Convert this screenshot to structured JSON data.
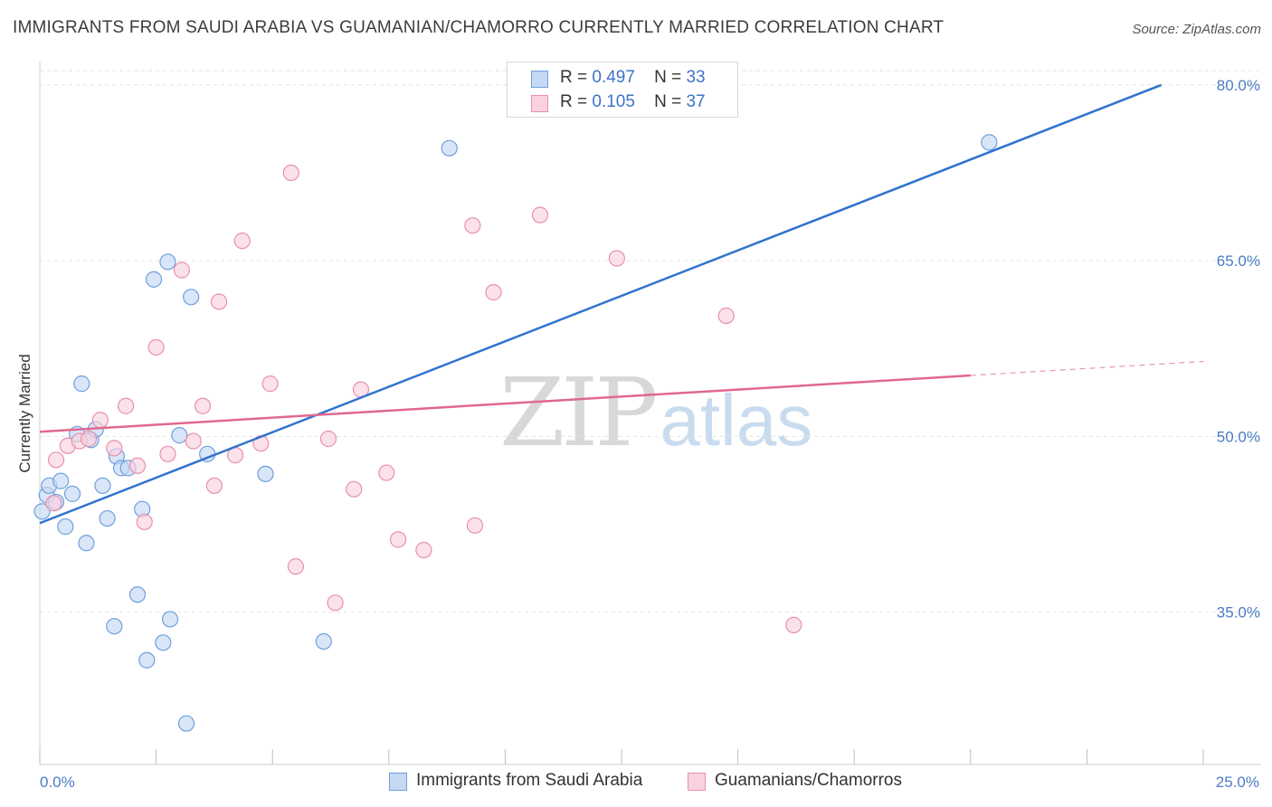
{
  "title": "IMMIGRANTS FROM SAUDI ARABIA VS GUAMANIAN/CHAMORRO CURRENTLY MARRIED CORRELATION CHART",
  "source": "Source: ZipAtlas.com",
  "watermark": {
    "zip": "ZIP",
    "atlas": "atlas"
  },
  "legend": {
    "r_label": "R =",
    "n_label": "N =",
    "rows": [
      {
        "r": "0.497",
        "n": "33"
      },
      {
        "r": "0.105",
        "n": "37"
      }
    ]
  },
  "chart_data": {
    "type": "scatter",
    "title": "IMMIGRANTS FROM SAUDI ARABIA VS GUAMANIAN/CHAMORRO CURRENTLY MARRIED CORRELATION CHART",
    "xlabel": "",
    "ylabel": "Currently Married",
    "xlim": [
      0,
      25
    ],
    "ylim": [
      22,
      82
    ],
    "x_tick_labels": [
      "0.0%",
      "25.0%"
    ],
    "y_ticks": [
      {
        "value": 35,
        "label": "35.0%"
      },
      {
        "value": 50,
        "label": "50.0%"
      },
      {
        "value": 65,
        "label": "65.0%"
      },
      {
        "value": 80,
        "label": "80.0%"
      }
    ],
    "grid": true,
    "series": [
      {
        "name": "Immigrants from Saudi Arabia",
        "color": "#6e9fde",
        "fill": "#c5d9f4",
        "R": 0.497,
        "N": 33,
        "trend": {
          "x0": 0,
          "y0": 42.6,
          "x1": 24.1,
          "y1": 80.0,
          "dashed_to": null
        },
        "points": [
          [
            0.05,
            43.6
          ],
          [
            0.15,
            45.0
          ],
          [
            0.2,
            45.8
          ],
          [
            0.35,
            44.4
          ],
          [
            0.45,
            46.2
          ],
          [
            0.55,
            42.3
          ],
          [
            0.7,
            45.1
          ],
          [
            0.8,
            50.2
          ],
          [
            0.9,
            54.5
          ],
          [
            1.0,
            40.9
          ],
          [
            1.1,
            49.7
          ],
          [
            1.2,
            50.6
          ],
          [
            1.35,
            45.8
          ],
          [
            1.45,
            43.0
          ],
          [
            1.6,
            33.8
          ],
          [
            1.65,
            48.3
          ],
          [
            1.75,
            47.3
          ],
          [
            1.9,
            47.3
          ],
          [
            2.1,
            36.5
          ],
          [
            2.2,
            43.8
          ],
          [
            2.3,
            30.9
          ],
          [
            2.45,
            63.4
          ],
          [
            2.65,
            32.4
          ],
          [
            2.75,
            64.9
          ],
          [
            2.8,
            34.4
          ],
          [
            3.0,
            50.1
          ],
          [
            3.15,
            25.5
          ],
          [
            3.25,
            61.9
          ],
          [
            3.6,
            48.5
          ],
          [
            4.85,
            46.8
          ],
          [
            6.1,
            32.5
          ],
          [
            8.8,
            74.6
          ],
          [
            20.4,
            75.1
          ]
        ]
      },
      {
        "name": "Guamanians/Chamorros",
        "color": "#e890ab",
        "fill": "#f9d2de",
        "R": 0.105,
        "N": 37,
        "trend": {
          "x0": 0,
          "y0": 50.4,
          "x1": 20.0,
          "y1": 55.2,
          "dashed_to": {
            "x": 25.0,
            "y": 56.4
          }
        },
        "points": [
          [
            0.3,
            44.3
          ],
          [
            0.35,
            48.0
          ],
          [
            0.6,
            49.2
          ],
          [
            0.85,
            49.6
          ],
          [
            1.05,
            49.8
          ],
          [
            1.3,
            51.4
          ],
          [
            1.6,
            49.0
          ],
          [
            1.85,
            52.6
          ],
          [
            2.1,
            47.5
          ],
          [
            2.25,
            42.7
          ],
          [
            2.5,
            57.6
          ],
          [
            2.75,
            48.5
          ],
          [
            3.05,
            64.2
          ],
          [
            3.3,
            49.6
          ],
          [
            3.5,
            52.6
          ],
          [
            3.75,
            45.8
          ],
          [
            3.85,
            61.5
          ],
          [
            4.2,
            48.4
          ],
          [
            4.35,
            66.7
          ],
          [
            4.75,
            49.4
          ],
          [
            4.95,
            54.5
          ],
          [
            5.4,
            72.5
          ],
          [
            5.5,
            38.9
          ],
          [
            6.2,
            49.8
          ],
          [
            6.35,
            35.8
          ],
          [
            6.75,
            45.5
          ],
          [
            6.9,
            54.0
          ],
          [
            7.45,
            46.9
          ],
          [
            7.7,
            41.2
          ],
          [
            8.25,
            40.3
          ],
          [
            9.3,
            68.0
          ],
          [
            9.35,
            42.4
          ],
          [
            9.75,
            62.3
          ],
          [
            10.75,
            68.9
          ],
          [
            12.4,
            65.2
          ],
          [
            14.75,
            60.3
          ],
          [
            16.2,
            33.9
          ]
        ]
      }
    ]
  }
}
